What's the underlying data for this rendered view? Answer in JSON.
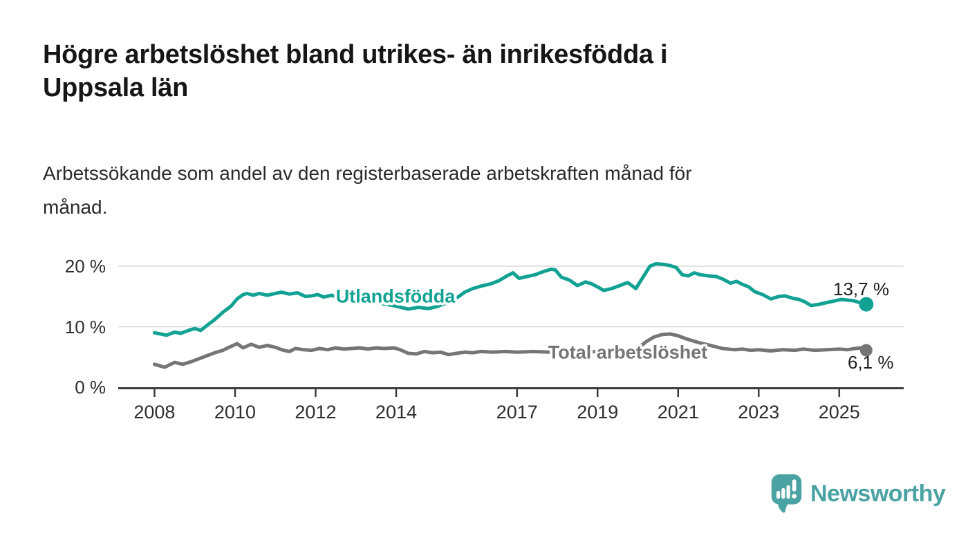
{
  "header": {
    "title": "Högre arbetslöshet bland utrikes- än inrikesfödda i\nUppsala län",
    "subtitle": "Arbetssökande som andel av den registerbaserade arbetskraften månad för\nmånad."
  },
  "chart_data": {
    "type": "line",
    "title": "Högre arbetslöshet bland utrikes- än inrikesfödda i Uppsala län",
    "subtitle": "Arbetssökande som andel av den registerbaserade arbetskraften månad för månad.",
    "unit": "%",
    "grid": "horizontal",
    "legend": "inline-labels",
    "x_domain": [
      2007.1,
      2026.6
    ],
    "y_domain": [
      0,
      22.3
    ],
    "y_ticks": [
      {
        "value": 0,
        "label": "0 %"
      },
      {
        "value": 10,
        "label": "10 %"
      },
      {
        "value": 20,
        "label": "20 %"
      }
    ],
    "x_ticks": [
      {
        "value": 2008,
        "label": "2008"
      },
      {
        "value": 2010,
        "label": "2010"
      },
      {
        "value": 2012,
        "label": "2012"
      },
      {
        "value": 2014,
        "label": "2014"
      },
      {
        "value": 2017,
        "label": "2017"
      },
      {
        "value": 2019,
        "label": "2019"
      },
      {
        "value": 2021,
        "label": "2021"
      },
      {
        "value": 2023,
        "label": "2023"
      },
      {
        "value": 2025,
        "label": "2025"
      }
    ],
    "series": [
      {
        "name": "Utlandsfödda",
        "color": "#12a294",
        "end_value": 13.7,
        "end_label": "13,7 %",
        "points": [
          [
            2008.0,
            9.0
          ],
          [
            2008.15,
            8.8
          ],
          [
            2008.3,
            8.6
          ],
          [
            2008.5,
            9.1
          ],
          [
            2008.65,
            8.9
          ],
          [
            2008.85,
            9.4
          ],
          [
            2009.0,
            9.7
          ],
          [
            2009.15,
            9.4
          ],
          [
            2009.3,
            10.2
          ],
          [
            2009.5,
            11.2
          ],
          [
            2009.7,
            12.4
          ],
          [
            2009.9,
            13.4
          ],
          [
            2010.05,
            14.6
          ],
          [
            2010.2,
            15.3
          ],
          [
            2010.3,
            15.5
          ],
          [
            2010.45,
            15.2
          ],
          [
            2010.6,
            15.5
          ],
          [
            2010.8,
            15.2
          ],
          [
            2011.0,
            15.5
          ],
          [
            2011.15,
            15.7
          ],
          [
            2011.35,
            15.4
          ],
          [
            2011.55,
            15.6
          ],
          [
            2011.75,
            15.0
          ],
          [
            2011.9,
            15.1
          ],
          [
            2012.05,
            15.3
          ],
          [
            2012.2,
            14.9
          ],
          [
            2012.4,
            15.2
          ],
          [
            2012.6,
            14.7
          ],
          [
            2012.8,
            14.9
          ],
          [
            2013.0,
            14.6
          ],
          [
            2013.25,
            14.3
          ],
          [
            2013.5,
            14.0
          ],
          [
            2013.75,
            13.7
          ],
          [
            2014.0,
            13.4
          ],
          [
            2014.3,
            12.9
          ],
          [
            2014.55,
            13.2
          ],
          [
            2014.8,
            13.0
          ],
          [
            2015.0,
            13.3
          ],
          [
            2015.2,
            13.8
          ],
          [
            2015.45,
            14.5
          ],
          [
            2015.7,
            15.7
          ],
          [
            2015.9,
            16.3
          ],
          [
            2016.1,
            16.7
          ],
          [
            2016.35,
            17.1
          ],
          [
            2016.55,
            17.6
          ],
          [
            2016.75,
            18.4
          ],
          [
            2016.9,
            18.9
          ],
          [
            2017.05,
            18.0
          ],
          [
            2017.25,
            18.3
          ],
          [
            2017.45,
            18.6
          ],
          [
            2017.65,
            19.1
          ],
          [
            2017.85,
            19.5
          ],
          [
            2017.95,
            19.4
          ],
          [
            2018.1,
            18.2
          ],
          [
            2018.3,
            17.7
          ],
          [
            2018.5,
            16.8
          ],
          [
            2018.7,
            17.4
          ],
          [
            2018.85,
            17.1
          ],
          [
            2019.05,
            16.4
          ],
          [
            2019.15,
            16.0
          ],
          [
            2019.35,
            16.3
          ],
          [
            2019.55,
            16.8
          ],
          [
            2019.75,
            17.3
          ],
          [
            2019.95,
            16.3
          ],
          [
            2020.1,
            17.9
          ],
          [
            2020.3,
            20.0
          ],
          [
            2020.45,
            20.4
          ],
          [
            2020.65,
            20.3
          ],
          [
            2020.8,
            20.1
          ],
          [
            2020.95,
            19.8
          ],
          [
            2021.1,
            18.6
          ],
          [
            2021.25,
            18.4
          ],
          [
            2021.4,
            18.9
          ],
          [
            2021.55,
            18.6
          ],
          [
            2021.75,
            18.4
          ],
          [
            2021.95,
            18.3
          ],
          [
            2022.1,
            17.9
          ],
          [
            2022.3,
            17.2
          ],
          [
            2022.45,
            17.5
          ],
          [
            2022.6,
            17.0
          ],
          [
            2022.75,
            16.6
          ],
          [
            2022.9,
            15.8
          ],
          [
            2023.1,
            15.3
          ],
          [
            2023.3,
            14.6
          ],
          [
            2023.5,
            15.0
          ],
          [
            2023.65,
            15.1
          ],
          [
            2023.85,
            14.7
          ],
          [
            2024.0,
            14.5
          ],
          [
            2024.15,
            14.1
          ],
          [
            2024.3,
            13.5
          ],
          [
            2024.5,
            13.7
          ],
          [
            2024.7,
            14.0
          ],
          [
            2024.9,
            14.3
          ],
          [
            2025.05,
            14.5
          ],
          [
            2025.2,
            14.4
          ],
          [
            2025.35,
            14.3
          ],
          [
            2025.5,
            14.0
          ],
          [
            2025.67,
            13.7
          ]
        ]
      },
      {
        "name": "Total arbetslöshet",
        "color": "#757575",
        "end_value": 6.1,
        "end_label": "6,1 %",
        "points": [
          [
            2008.0,
            3.8
          ],
          [
            2008.25,
            3.3
          ],
          [
            2008.5,
            4.1
          ],
          [
            2008.7,
            3.8
          ],
          [
            2008.9,
            4.2
          ],
          [
            2009.1,
            4.7
          ],
          [
            2009.3,
            5.2
          ],
          [
            2009.5,
            5.7
          ],
          [
            2009.7,
            6.1
          ],
          [
            2009.85,
            6.6
          ],
          [
            2010.05,
            7.2
          ],
          [
            2010.2,
            6.5
          ],
          [
            2010.4,
            7.1
          ],
          [
            2010.6,
            6.6
          ],
          [
            2010.8,
            6.9
          ],
          [
            2011.0,
            6.6
          ],
          [
            2011.2,
            6.1
          ],
          [
            2011.35,
            5.9
          ],
          [
            2011.5,
            6.4
          ],
          [
            2011.7,
            6.2
          ],
          [
            2011.9,
            6.1
          ],
          [
            2012.1,
            6.4
          ],
          [
            2012.3,
            6.2
          ],
          [
            2012.5,
            6.5
          ],
          [
            2012.7,
            6.3
          ],
          [
            2012.9,
            6.4
          ],
          [
            2013.1,
            6.5
          ],
          [
            2013.3,
            6.3
          ],
          [
            2013.5,
            6.5
          ],
          [
            2013.7,
            6.4
          ],
          [
            2013.95,
            6.5
          ],
          [
            2014.1,
            6.2
          ],
          [
            2014.3,
            5.6
          ],
          [
            2014.5,
            5.5
          ],
          [
            2014.7,
            5.9
          ],
          [
            2014.9,
            5.7
          ],
          [
            2015.1,
            5.8
          ],
          [
            2015.3,
            5.4
          ],
          [
            2015.5,
            5.6
          ],
          [
            2015.7,
            5.8
          ],
          [
            2015.9,
            5.7
          ],
          [
            2016.1,
            5.9
          ],
          [
            2016.4,
            5.8
          ],
          [
            2016.7,
            5.9
          ],
          [
            2017.0,
            5.8
          ],
          [
            2017.4,
            5.9
          ],
          [
            2017.8,
            5.8
          ],
          [
            2018.2,
            5.9
          ],
          [
            2018.6,
            5.8
          ],
          [
            2019.0,
            5.9
          ],
          [
            2019.4,
            6.0
          ],
          [
            2019.8,
            6.1
          ],
          [
            2020.0,
            6.4
          ],
          [
            2020.2,
            7.5
          ],
          [
            2020.4,
            8.3
          ],
          [
            2020.6,
            8.7
          ],
          [
            2020.8,
            8.8
          ],
          [
            2021.0,
            8.5
          ],
          [
            2021.2,
            8.0
          ],
          [
            2021.5,
            7.4
          ],
          [
            2021.8,
            6.9
          ],
          [
            2022.1,
            6.4
          ],
          [
            2022.4,
            6.2
          ],
          [
            2022.6,
            6.3
          ],
          [
            2022.8,
            6.1
          ],
          [
            2023.0,
            6.2
          ],
          [
            2023.3,
            6.0
          ],
          [
            2023.6,
            6.2
          ],
          [
            2023.9,
            6.1
          ],
          [
            2024.1,
            6.3
          ],
          [
            2024.4,
            6.1
          ],
          [
            2024.7,
            6.2
          ],
          [
            2025.0,
            6.3
          ],
          [
            2025.2,
            6.2
          ],
          [
            2025.4,
            6.4
          ],
          [
            2025.55,
            6.5
          ],
          [
            2025.67,
            6.1
          ]
        ]
      }
    ]
  },
  "footer": {
    "brand": "Newsworthy"
  },
  "colors": {
    "accent": "#12a294",
    "series_gray": "#757575",
    "logo": "#4aa3a2",
    "grid": "#d9d9d9",
    "axis": "#3c3c3c",
    "text": "#161616"
  }
}
